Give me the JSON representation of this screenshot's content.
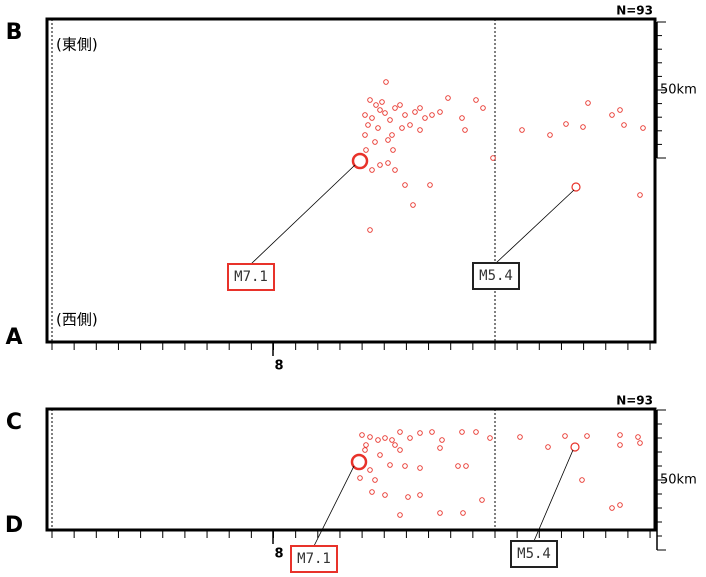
{
  "chart_data": [
    {
      "type": "scatter",
      "top_label": "B",
      "bottom_label": "A",
      "top_note": "(東側)",
      "bottom_note": "(西側)",
      "count": "N=93",
      "scale_label": "50km",
      "xlim": [
        0,
        600
      ],
      "ylim": [
        0,
        323
      ],
      "xticks": [
        {
          "value": 221,
          "label": "8"
        }
      ],
      "color": "#e8322a",
      "x": [
        334,
        318,
        324,
        328,
        313,
        320,
        316,
        326,
        333,
        338,
        343,
        348,
        353,
        358,
        363,
        368,
        373,
        380,
        396,
        410,
        413,
        424,
        431,
        336,
        323,
        314,
        328,
        336,
        320,
        343,
        353,
        378,
        361,
        318,
        341,
        350,
        368,
        388,
        313,
        340,
        330,
        441,
        470,
        498,
        514,
        531,
        536,
        560,
        568,
        572,
        591,
        588
      ],
      "values": [
        260,
        242,
        237,
        232,
        227,
        224,
        217,
        214,
        229,
        222,
        234,
        237,
        227,
        217,
        230,
        234,
        224,
        227,
        244,
        224,
        212,
        242,
        234,
        202,
        200,
        192,
        177,
        179,
        172,
        172,
        157,
        157,
        137,
        112,
        192,
        214,
        212,
        230,
        207,
        207,
        240,
        184,
        212,
        207,
        218,
        215,
        239,
        227,
        232,
        217,
        214,
        147
      ],
      "annotations": [
        {
          "label": "M7.1",
          "x": 308,
          "y": 181,
          "color": "#e8322a"
        },
        {
          "label": "M5.4",
          "x": 524,
          "y": 155,
          "color": "#222222"
        }
      ]
    },
    {
      "type": "scatter",
      "top_label": "C",
      "bottom_label": "D",
      "count": "N=93",
      "scale_label": "50km",
      "xlim": [
        0,
        600
      ],
      "ylim": [
        0,
        121
      ],
      "xticks": [
        {
          "value": 221,
          "label": "8"
        }
      ],
      "color": "#e8322a",
      "x": [
        310,
        318,
        326,
        333,
        340,
        348,
        358,
        368,
        380,
        390,
        410,
        424,
        438,
        313,
        328,
        348,
        318,
        338,
        353,
        368,
        388,
        406,
        414,
        323,
        333,
        320,
        356,
        368,
        348,
        388,
        411,
        430,
        308,
        314,
        343,
        468,
        496,
        513,
        535,
        530,
        568,
        568,
        586,
        588,
        560,
        568
      ],
      "values": [
        95,
        93,
        90,
        92,
        90,
        98,
        92,
        97,
        98,
        90,
        98,
        98,
        92,
        80,
        75,
        80,
        60,
        65,
        64,
        62,
        82,
        64,
        64,
        50,
        35,
        38,
        33,
        35,
        15,
        17,
        17,
        30,
        52,
        85,
        85,
        93,
        83,
        94,
        94,
        50,
        95,
        85,
        93,
        87,
        22,
        25
      ],
      "annotations": [
        {
          "label": "M7.1",
          "x": 307,
          "y": 68,
          "color": "#e8322a"
        },
        {
          "label": "M5.4",
          "x": 523,
          "y": 83,
          "color": "#222222"
        }
      ]
    }
  ]
}
